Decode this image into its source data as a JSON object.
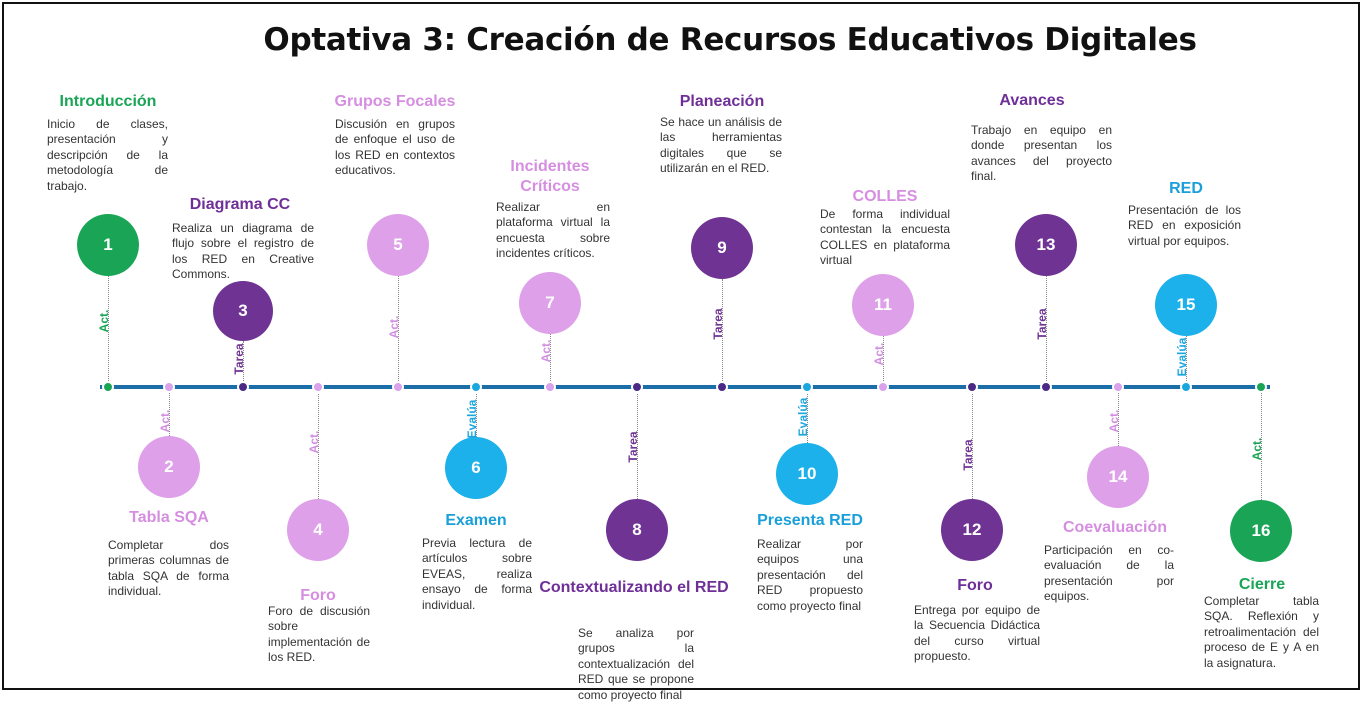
{
  "title": "Optativa 3: Creación de Recursos Educativos Digitales",
  "colors": {
    "green": "#1aa556",
    "purple": "#6f3394",
    "lilac": "#dea0e8",
    "blue": "#1cb1ea",
    "line": "#1c6ea8"
  },
  "steps": [
    {
      "number": "1",
      "tag": "Act.",
      "title": "Introducción",
      "desc": "Inicio de clases, presentación y descripción de la metodología de trabajo."
    },
    {
      "number": "2",
      "tag": "Act.",
      "title": "Tabla SQA",
      "desc": "Completar dos primeras columnas de tabla SQA de forma individual."
    },
    {
      "number": "3",
      "tag": "Tarea",
      "title": "Diagrama CC",
      "desc": "Realiza un diagrama de flujo sobre el registro de los RED en Creative Commons."
    },
    {
      "number": "4",
      "tag": "Act.",
      "title": "Foro",
      "desc": "Foro de discusión sobre implementación de los RED."
    },
    {
      "number": "5",
      "tag": "Act.",
      "title": "Grupos Focales",
      "desc": "Discusión en grupos de enfoque el uso de los RED en contextos educativos."
    },
    {
      "number": "6",
      "tag": "Evalúa",
      "title": "Examen",
      "desc": "Previa lectura de artículos sobre EVEAS, realiza ensayo de forma individual."
    },
    {
      "number": "7",
      "tag": "Act.",
      "title": "Incidentes Críticos",
      "desc": "Realizar en plataforma virtual la encuesta sobre incidentes críticos."
    },
    {
      "number": "8",
      "tag": "Tarea",
      "title": "Contextualizando el RED",
      "desc": "Se analiza por grupos la contextualización del RED que se propone como proyecto final"
    },
    {
      "number": "9",
      "tag": "Tarea",
      "title": "Planeación",
      "desc": "Se hace un análisis de las herramientas digitales que se utilizarán en el RED."
    },
    {
      "number": "10",
      "tag": "Evalúa",
      "title": "Presenta RED",
      "desc": "Realizar por equipos una presentación del RED propuesto como proyecto final"
    },
    {
      "number": "11",
      "tag": "Act.",
      "title": "COLLES",
      "desc": "De forma individual contestan la encuesta COLLES en plataforma virtual"
    },
    {
      "number": "12",
      "tag": "Tarea",
      "title": "Foro",
      "desc": "Entrega por equipo de la Secuencia Didáctica del curso virtual propuesto."
    },
    {
      "number": "13",
      "tag": "Tarea",
      "title": "Avances",
      "desc": "Trabajo en equipo en donde presentan los avances del proyecto final."
    },
    {
      "number": "14",
      "tag": "Act.",
      "title": "Coevaluación",
      "desc": "Participación en co-evaluación de la presentación por equipos."
    },
    {
      "number": "15",
      "tag": "Evalúa",
      "title": "RED",
      "desc": "Presentación de los RED en exposición virtual por equipos."
    },
    {
      "number": "16",
      "tag": "Act.",
      "title": "Cierre",
      "desc": "Completar tabla SQA. Reflexión y retroalimentación del proceso de E y A en la asignatura."
    }
  ]
}
